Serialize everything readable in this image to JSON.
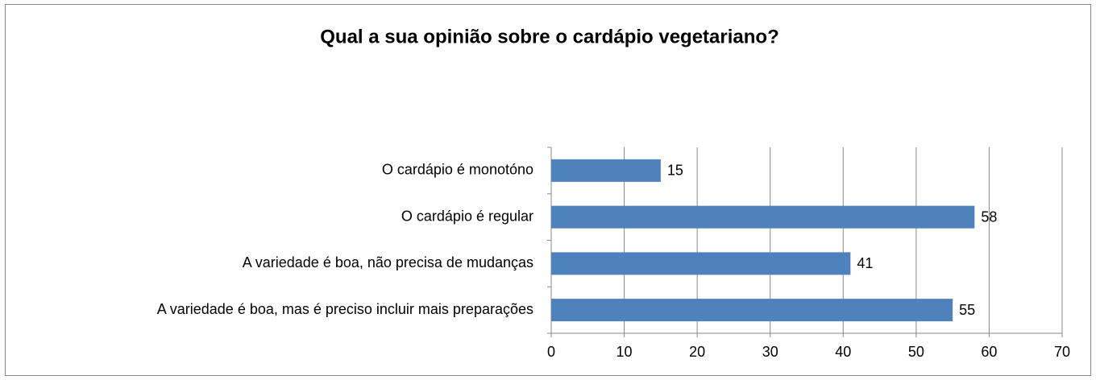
{
  "chart_data": {
    "type": "bar",
    "orientation": "horizontal",
    "title": "Qual a sua opinião sobre o cardápio vegetariano?",
    "categories": [
      "O cardápio é monotóno",
      "O cardápio é regular",
      "A variedade é boa, não precisa de mudanças",
      "A variedade é boa, mas é preciso incluir mais preparações"
    ],
    "values": [
      15,
      58,
      41,
      55
    ],
    "color": "#4f81bd",
    "xlim": [
      0,
      70
    ],
    "xticks": [
      0,
      10,
      20,
      30,
      40,
      50,
      60,
      70
    ],
    "grid": true
  }
}
